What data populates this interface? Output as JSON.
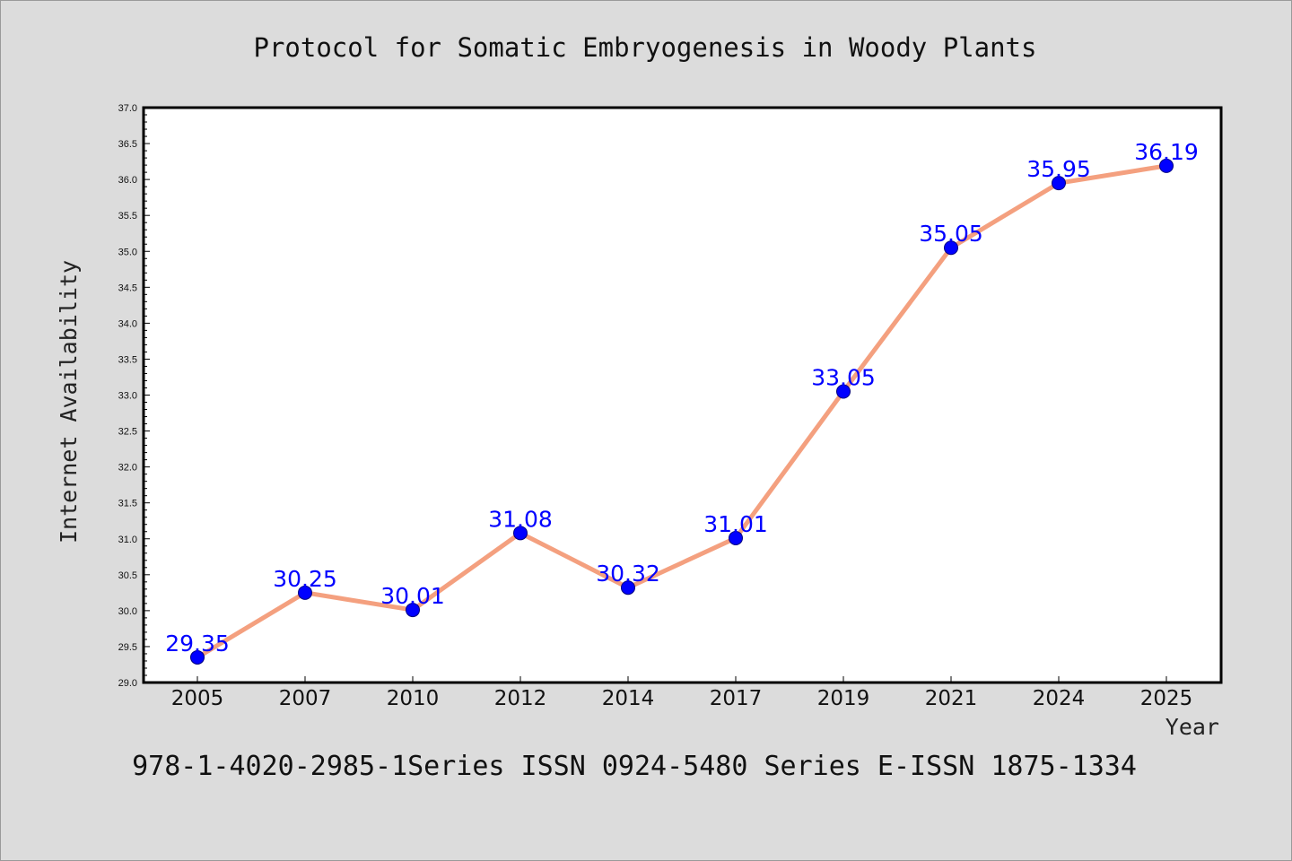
{
  "chart_data": {
    "type": "line",
    "title": "Protocol for Somatic Embryogenesis in Woody Plants",
    "xlabel": "Year",
    "ylabel": "Internet Availability",
    "footer": "978-1-4020-2985-1Series ISSN 0924-5480 Series E-ISSN 1875-1334",
    "categories": [
      "2005",
      "2007",
      "2010",
      "2012",
      "2014",
      "2017",
      "2019",
      "2021",
      "2024",
      "2025"
    ],
    "series": [
      {
        "values": [
          29.35,
          30.25,
          30.01,
          31.08,
          30.32,
          31.01,
          33.05,
          35.05,
          35.95,
          36.19
        ],
        "data_labels": [
          "29.35",
          "30.25",
          "30.01",
          "31.08",
          "30.32",
          "31.01",
          "33.05",
          "35.05",
          "35.95",
          "36.19"
        ]
      }
    ],
    "ylim": [
      29.0,
      37.0
    ],
    "yticks": [
      "29.0",
      "29.5",
      "30.0",
      "30.5",
      "31.0",
      "31.5",
      "32.0",
      "32.5",
      "33.0",
      "33.5",
      "34.0",
      "34.5",
      "35.0",
      "35.5",
      "36.0",
      "36.5",
      "37.0"
    ],
    "grid": false,
    "legend": "none",
    "colors": {
      "line": "#f4a07f",
      "marker": "#0000ff",
      "data_label": "#0000ff",
      "background": "#dcdcdc",
      "plot_background": "#ffffff"
    }
  }
}
